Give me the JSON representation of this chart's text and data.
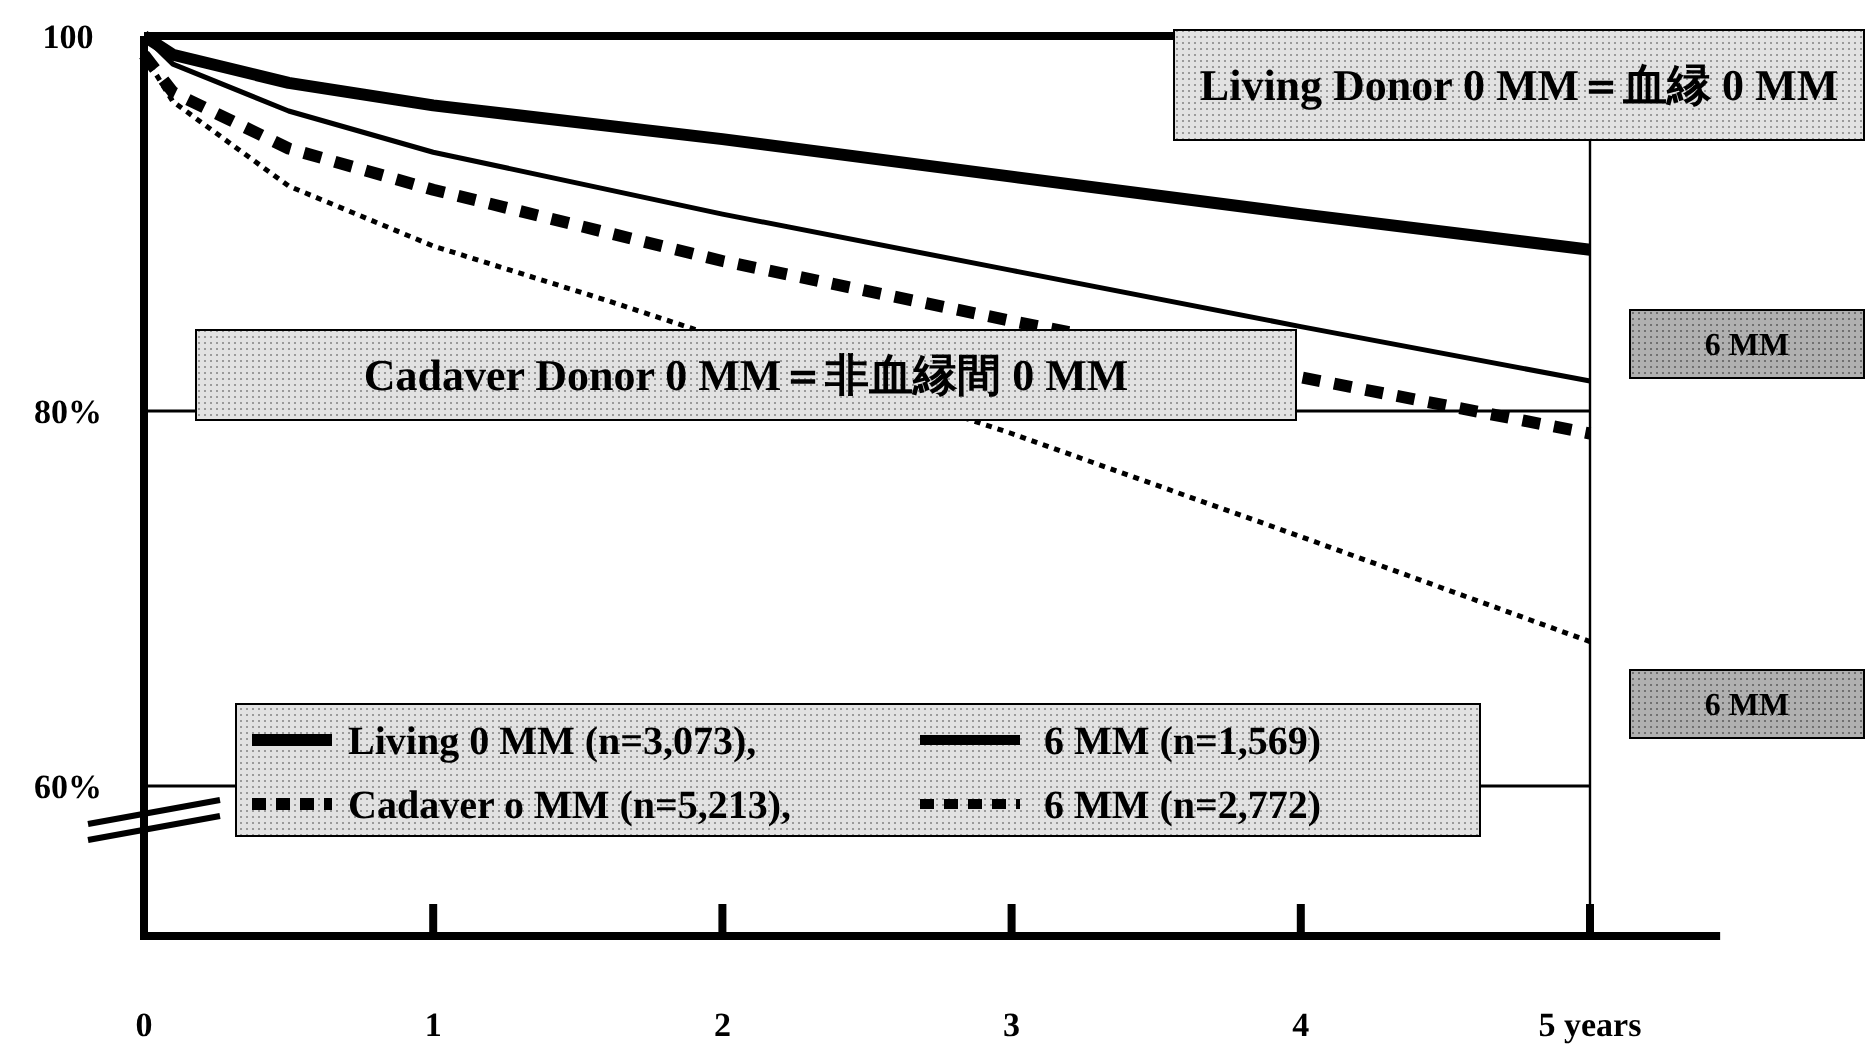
{
  "chart_data": {
    "type": "line",
    "x": [
      0,
      0.1,
      0.5,
      1,
      2,
      3,
      4,
      5
    ],
    "series": [
      {
        "name": "Living 0 MM (n=3,073),",
        "color": "#000000",
        "line_style": "solid",
        "values": [
          100,
          99,
          97.5,
          96.3,
          94.5,
          92.5,
          90.5,
          88.6
        ]
      },
      {
        "name": "6 MM (n=1,569)",
        "color": "#000000",
        "line_style": "solid",
        "values": [
          100,
          98.5,
          96,
          93.8,
          90.5,
          87.5,
          84.5,
          81.6
        ]
      },
      {
        "name": "Cadaver o MM (n=5,213),",
        "color": "#000000",
        "line_style": "dotted",
        "values": [
          99,
          97,
          94,
          91.8,
          88,
          84.8,
          81.8,
          78.8
        ]
      },
      {
        "name": "6 MM (n=2,772)",
        "color": "#000000",
        "line_style": "dotted",
        "x": [
          0,
          0.1,
          0.5,
          1,
          1.6,
          3,
          4,
          5
        ],
        "values": [
          99,
          96.5,
          92,
          88.8,
          85.9,
          78.8,
          73.3,
          67.7
        ]
      }
    ],
    "xlim": [
      0,
      5.45
    ],
    "xticks": [
      0,
      1,
      2,
      3,
      4,
      {
        "value": 5,
        "label": "5 years"
      }
    ],
    "ylim": [
      52,
      100
    ],
    "yticks": [
      100,
      {
        "value": 80,
        "label": "80%"
      },
      {
        "value": 60,
        "label": "60%"
      }
    ],
    "grid": "y",
    "legend": "bottom left",
    "ref_lines": [
      {
        "axis": "x",
        "value": 5,
        "label": null
      }
    ],
    "annotations": [
      "Living Donor 0 MM＝血縁 0 MM",
      "Cadaver Donor  0 MM＝非血縁間 0 MM",
      "6 MM",
      "6 MM"
    ]
  }
}
